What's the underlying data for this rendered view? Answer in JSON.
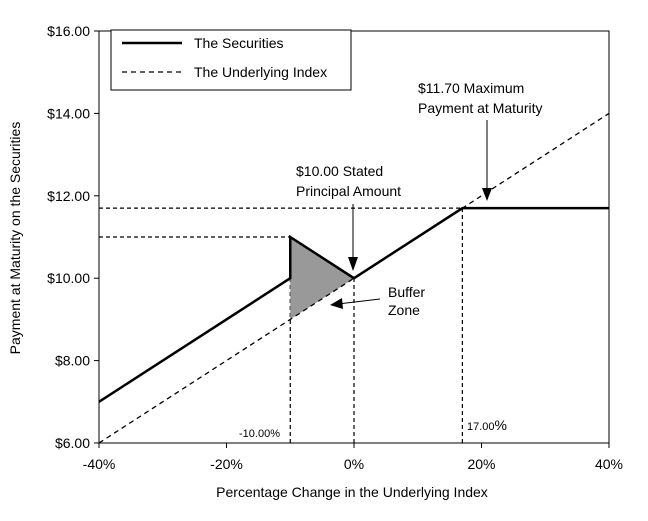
{
  "chart_data": {
    "type": "line",
    "xlabel": "Percentage Change in the Underlying Index",
    "ylabel": "Payment at Maturity on the Securities",
    "xlim": [
      -40,
      40
    ],
    "ylim": [
      6,
      16
    ],
    "x_ticks": [
      -40,
      -20,
      0,
      20,
      40
    ],
    "x_tick_labels": [
      "-40%",
      "-20%",
      "0%",
      "20%",
      "40%"
    ],
    "y_ticks": [
      6,
      8,
      10,
      12,
      14,
      16
    ],
    "y_tick_labels": [
      "$6.00",
      "$8.00",
      "$10.00",
      "$12.00",
      "$14.00",
      "$16.00"
    ],
    "legend_position": "top-left",
    "series": [
      {
        "name": "The Securities",
        "style": "solid",
        "points": [
          [
            -40,
            7.0
          ],
          [
            -10,
            10.0
          ],
          [
            -10,
            11.0
          ],
          [
            0,
            10.0
          ],
          [
            17,
            11.7
          ],
          [
            40,
            11.7
          ]
        ]
      },
      {
        "name": "The Underlying Index",
        "style": "dashed",
        "points": [
          [
            -40,
            6.0
          ],
          [
            40,
            14.0
          ]
        ]
      }
    ],
    "buffer_zone": {
      "color": "#999999",
      "points": [
        [
          -10,
          11.0
        ],
        [
          0,
          10.0
        ],
        [
          -10,
          9.0
        ]
      ]
    },
    "guide_lines": [
      {
        "points": [
          [
            -40,
            11.7
          ],
          [
            17,
            11.7
          ]
        ]
      },
      {
        "points": [
          [
            -40,
            11.0
          ],
          [
            -10,
            11.0
          ]
        ]
      },
      {
        "points": [
          [
            -10,
            6.0
          ],
          [
            -10,
            11.0
          ]
        ]
      },
      {
        "points": [
          [
            0,
            6.0
          ],
          [
            0,
            10.0
          ]
        ]
      },
      {
        "points": [
          [
            17,
            6.0
          ],
          [
            17,
            11.7
          ]
        ]
      }
    ],
    "annotations": [
      {
        "id": "max-payment",
        "lines": [
          "$11.70 Maximum",
          "Payment at Maturity"
        ]
      },
      {
        "id": "stated-principal",
        "lines": [
          "$10.00 Stated",
          "Principal Amount"
        ]
      },
      {
        "id": "buffer-zone",
        "lines": [
          "Buffer",
          "Zone"
        ]
      },
      {
        "id": "buffer-pct",
        "text": "-10.00%"
      },
      {
        "id": "cap-pct",
        "text_small": "17.00",
        "text_large": "%"
      }
    ]
  }
}
